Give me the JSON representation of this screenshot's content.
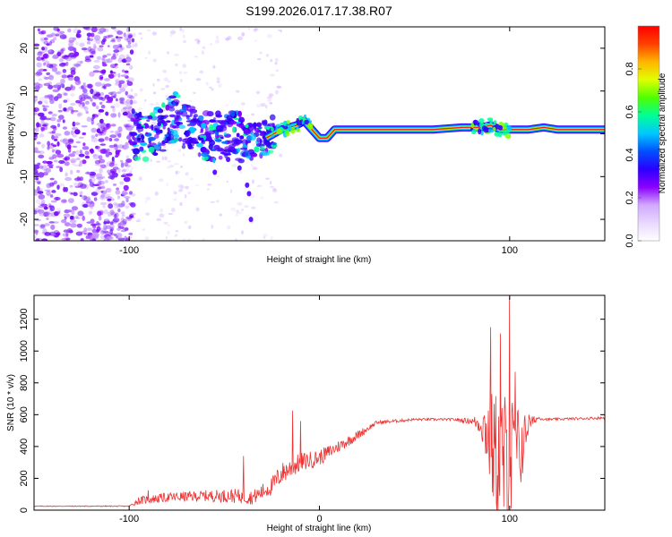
{
  "chart_data": [
    {
      "type": "heatmap",
      "title": "S199.2026.017.17.38.R07",
      "xlabel": "Height of straight line (km)",
      "ylabel": "Frequency (Hz)",
      "xlim": [
        -150,
        150
      ],
      "ylim": [
        -25,
        25
      ],
      "xticks": [
        -100,
        0,
        100
      ],
      "xtick_labels": [
        "-100",
        "",
        "100"
      ],
      "yticks": [
        -20,
        -10,
        0,
        10,
        20
      ],
      "ytick_labels": [
        "-20",
        "-10",
        "0",
        "10",
        "20"
      ],
      "colorbar": {
        "label": "Normalized spectral amplitude",
        "range": [
          0,
          1
        ],
        "ticks": [
          0.0,
          0.2,
          0.4,
          0.6,
          0.8
        ],
        "tick_labels": [
          "0.0",
          "0.2",
          "0.4",
          "0.6",
          "0.8"
        ],
        "colormap": [
          "#ffffff",
          "#e8d8ff",
          "#d0a8ff",
          "#8a00ff",
          "#2a00ff",
          "#0050ff",
          "#00c8ff",
          "#00ff96",
          "#50ff00",
          "#e0ff00",
          "#ffb400",
          "#ff4000",
          "#ff0000"
        ]
      },
      "ridge": {
        "description": "dominant frequency track",
        "points": [
          [
            -98,
            0
          ],
          [
            -90,
            -1
          ],
          [
            -75,
            4
          ],
          [
            -65,
            0
          ],
          [
            -55,
            -1
          ],
          [
            -45,
            0
          ],
          [
            -35,
            -2
          ],
          [
            -28,
            -1
          ],
          [
            -20,
            1
          ],
          [
            -12,
            2
          ],
          [
            -8,
            3
          ],
          [
            -4,
            1
          ],
          [
            0,
            -1
          ],
          [
            4,
            -1
          ],
          [
            8,
            1
          ],
          [
            15,
            1
          ],
          [
            40,
            1
          ],
          [
            60,
            1
          ],
          [
            75,
            1.5
          ],
          [
            85,
            1.5
          ],
          [
            90,
            2
          ],
          [
            95,
            1
          ],
          [
            100,
            1
          ],
          [
            110,
            1
          ],
          [
            118,
            1.5
          ],
          [
            125,
            1
          ],
          [
            150,
            1
          ]
        ]
      },
      "noise_region": {
        "x": [
          -150,
          -100
        ],
        "note": "broadband scatter"
      }
    },
    {
      "type": "line",
      "xlabel": "Height of straight line (km)",
      "ylabel": "SNR (10 * v/v)",
      "xlim": [
        -150,
        150
      ],
      "ylim": [
        0,
        1350
      ],
      "xticks": [
        -100,
        0,
        100
      ],
      "xtick_labels": [
        "-100",
        "0",
        "100"
      ],
      "yticks": [
        0,
        200,
        400,
        600,
        800,
        1000,
        1200
      ],
      "ytick_labels": [
        "0",
        "200",
        "400",
        "600",
        "800",
        "1000",
        "1200"
      ],
      "series": [
        {
          "name": "SNR",
          "color": "#ee3333",
          "envelope": {
            "x": [
              -150,
              -100,
              -95,
              -80,
              -60,
              -45,
              -35,
              -25,
              -20,
              -10,
              0,
              10,
              20,
              30,
              50,
              70,
              80,
              85,
              88,
              92,
              95,
              100,
              105,
              110,
              115,
              120,
              150
            ],
            "base": [
              25,
              25,
              60,
              80,
              90,
              90,
              80,
              150,
              230,
              300,
              330,
              400,
              470,
              550,
              570,
              570,
              560,
              540,
              500,
              350,
              300,
              280,
              350,
              540,
              580,
              570,
              580
            ],
            "amp": [
              3,
              3,
              25,
              30,
              35,
              45,
              45,
              60,
              70,
              60,
              50,
              40,
              30,
              12,
              8,
              8,
              20,
              80,
              250,
              400,
              450,
              500,
              300,
              50,
              12,
              8,
              8
            ]
          },
          "peaks": [
            [
              -90,
              125
            ],
            [
              -40,
              340
            ],
            [
              -14,
              625
            ],
            [
              -10,
              560
            ],
            [
              90,
              1150
            ],
            [
              95,
              1110
            ],
            [
              100,
              1340
            ],
            [
              103,
              870
            ],
            [
              110,
              600
            ]
          ]
        }
      ]
    }
  ]
}
